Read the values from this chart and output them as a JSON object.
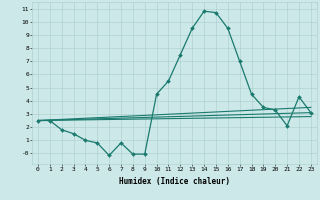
{
  "xlabel": "Humidex (Indice chaleur)",
  "xlim": [
    -0.5,
    23.5
  ],
  "ylim": [
    -0.8,
    11.5
  ],
  "xticks": [
    0,
    1,
    2,
    3,
    4,
    5,
    6,
    7,
    8,
    9,
    10,
    11,
    12,
    13,
    14,
    15,
    16,
    17,
    18,
    19,
    20,
    21,
    22,
    23
  ],
  "yticks": [
    0,
    1,
    2,
    3,
    4,
    5,
    6,
    7,
    8,
    9,
    10,
    11
  ],
  "ytick_labels": [
    "-0",
    "1",
    "2",
    "3",
    "4",
    "5",
    "6",
    "7",
    "8",
    "9",
    "10",
    "11"
  ],
  "bg_color": "#cce8e8",
  "grid_color": "#aacccc",
  "line_color": "#1a7a6e",
  "line1_x": [
    0,
    1,
    2,
    3,
    4,
    5,
    6,
    7,
    8,
    9,
    10,
    11,
    12,
    13,
    14,
    15,
    16,
    17,
    18,
    19,
    20,
    21,
    22,
    23
  ],
  "line1_y": [
    2.5,
    2.5,
    1.8,
    1.5,
    1.0,
    0.8,
    -0.15,
    0.8,
    -0.05,
    -0.05,
    4.5,
    5.5,
    7.5,
    9.5,
    10.8,
    10.7,
    9.5,
    7.0,
    4.5,
    3.5,
    3.3,
    2.1,
    4.3,
    3.1
  ],
  "line2_x": [
    0,
    23
  ],
  "line2_y": [
    2.5,
    3.5
  ],
  "line3_x": [
    0,
    23
  ],
  "line3_y": [
    2.5,
    3.1
  ],
  "line4_x": [
    0,
    23
  ],
  "line4_y": [
    2.5,
    2.8
  ]
}
